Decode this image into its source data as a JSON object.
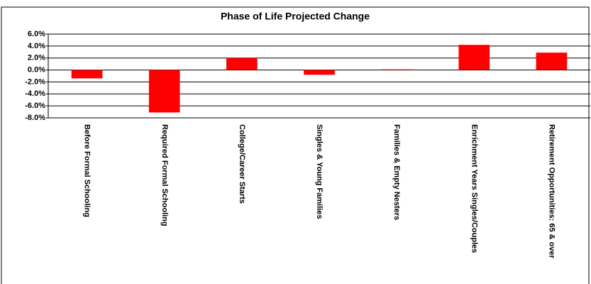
{
  "chart_data": {
    "type": "bar",
    "title": "Phase of Life Projected Change",
    "categories": [
      "Before Formal Schooling",
      "Required Formal Schooling",
      "College/Career Starts",
      "Singles & Young Families",
      "Families & Empty Nesters",
      "Enrichment Years Singles/Couples",
      "Retirement Opportunities: 65 & over"
    ],
    "values": [
      -1.4,
      -7.1,
      2.0,
      -0.8,
      0.1,
      4.2,
      2.9
    ],
    "color": "#ff0000",
    "ylim": [
      -8,
      6
    ],
    "yticks": [
      {
        "value": -8,
        "label": "-8.0%"
      },
      {
        "value": -6,
        "label": "-6.0%"
      },
      {
        "value": -4,
        "label": "-4.0%"
      },
      {
        "value": -2,
        "label": "-2.0%"
      },
      {
        "value": 0,
        "label": "0.0%"
      },
      {
        "value": 2,
        "label": "2.0%"
      },
      {
        "value": 4,
        "label": "4.0%"
      },
      {
        "value": 6,
        "label": "6.0%"
      }
    ],
    "grid": true
  }
}
